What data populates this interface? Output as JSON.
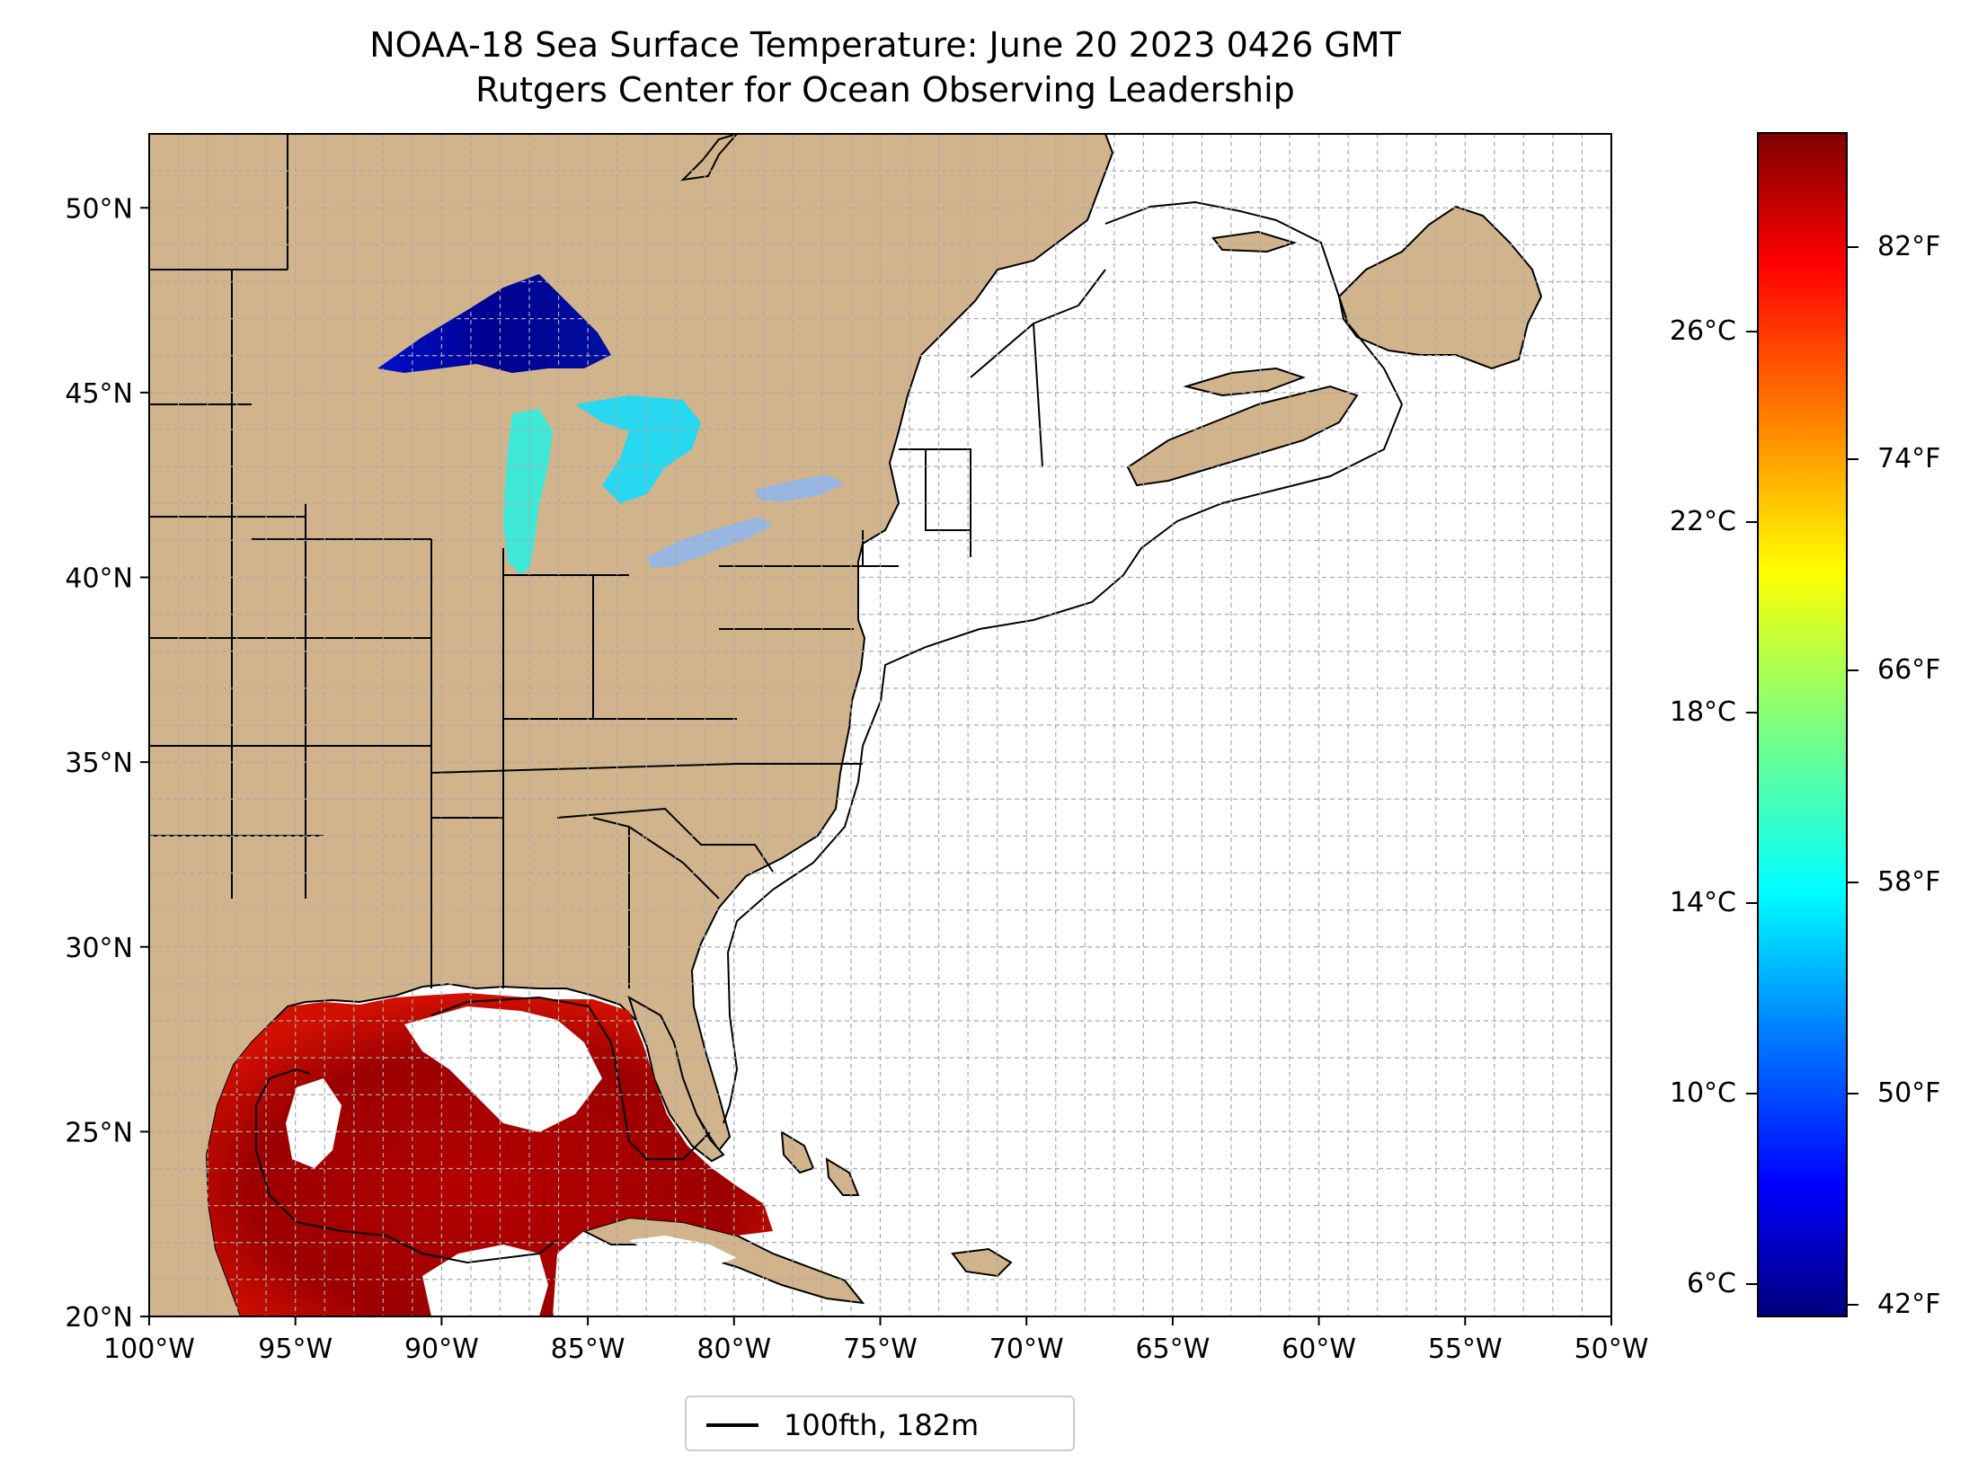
{
  "title": {
    "line1": "NOAA-18 Sea Surface Temperature: June 20 2023 0426 GMT",
    "line2": "Rutgers Center for Ocean Observing Leadership"
  },
  "map": {
    "extent": {
      "lon": [
        -100,
        -50
      ],
      "lat": [
        20,
        52
      ]
    },
    "land_color": "#d2b48c",
    "lake_color": "#97b6e1",
    "ocean_color": "#ffffff",
    "lon_ticks": [
      "100°W",
      "95°W",
      "90°W",
      "85°W",
      "80°W",
      "75°W",
      "70°W",
      "65°W",
      "60°W",
      "55°W",
      "50°W"
    ],
    "lat_ticks": [
      "20°N",
      "25°N",
      "30°N",
      "35°N",
      "40°N",
      "45°N",
      "50°N"
    ]
  },
  "legend": {
    "label": "100fth, 182m"
  },
  "colorbar": {
    "celsius": [
      "6°C",
      "10°C",
      "14°C",
      "18°C",
      "22°C",
      "26°C"
    ],
    "fahrenheit": [
      "42°F",
      "50°F",
      "58°F",
      "66°F",
      "74°F",
      "82°F"
    ],
    "colormap": "jet",
    "range_c": [
      5.3,
      30.2
    ]
  }
}
